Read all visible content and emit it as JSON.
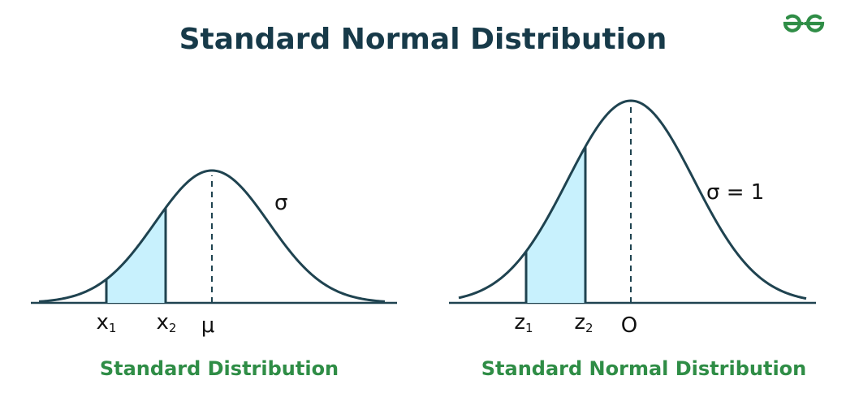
{
  "title": "Standard Normal Distribution",
  "logo": {
    "name": "geeksforgeeks-logo",
    "color": "#2f8d46"
  },
  "colors": {
    "curve": "#1f4350",
    "shade": "#c8f1fd",
    "title": "#173a49",
    "caption": "#2f8d46"
  },
  "left": {
    "caption": "Standard Distribution",
    "sigma_label": "σ",
    "labels": {
      "x1": {
        "base": "x",
        "sub": "1"
      },
      "x2": {
        "base": "x",
        "sub": "2"
      },
      "mu": "μ"
    }
  },
  "right": {
    "caption": "Standard Normal Distribution",
    "sigma_label": "σ = 1",
    "labels": {
      "z1": {
        "base": "z",
        "sub": "1"
      },
      "z2": {
        "base": "z",
        "sub": "2"
      },
      "zero": "O"
    }
  }
}
